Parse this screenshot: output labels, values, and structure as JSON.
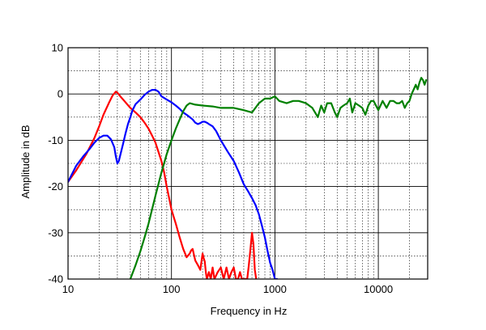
{
  "chart_data": {
    "type": "line",
    "title": "",
    "xlabel": "Frequency  in Hz",
    "ylabel": "Amplitude in dB",
    "xscale": "log",
    "xlim": [
      10,
      30000
    ],
    "ylim": [
      -40,
      10
    ],
    "xticks": [
      10,
      100,
      1000,
      10000
    ],
    "xtick_labels": [
      "10",
      "100",
      "1000",
      "10000"
    ],
    "yticks": [
      10,
      0,
      -10,
      -20,
      -30,
      -40
    ],
    "ytick_labels": [
      "10",
      "0",
      "-10",
      "-20",
      "-30",
      "-40"
    ],
    "grid": true,
    "legend": "none",
    "series": [
      {
        "color": "#ff0000",
        "x": [
          10,
          12,
          15,
          18,
          20,
          22,
          25,
          27,
          29,
          30,
          32,
          35,
          40,
          45,
          50,
          55,
          60,
          65,
          70,
          80,
          85,
          90,
          95,
          100,
          110,
          120,
          130,
          140,
          150,
          155,
          160,
          165,
          170,
          180,
          190,
          200,
          205,
          210,
          215,
          220,
          230,
          240,
          250,
          260,
          280,
          300,
          320,
          340,
          360,
          380,
          400,
          420,
          440,
          460,
          480,
          500,
          520,
          540,
          560,
          580,
          600,
          620,
          640,
          660
        ],
        "y": [
          -19,
          -16.5,
          -13,
          -9.5,
          -7,
          -4.5,
          -1.8,
          -0.3,
          0.5,
          0.3,
          -0.5,
          -1.5,
          -3,
          -4,
          -5,
          -6.2,
          -7.5,
          -9,
          -10.5,
          -14.5,
          -17,
          -20,
          -22.5,
          -25,
          -28,
          -31,
          -33.5,
          -35.3,
          -34.5,
          -33.8,
          -33.5,
          -34.8,
          -36,
          -37,
          -38,
          -34.5,
          -35.5,
          -36.2,
          -38.5,
          -40,
          -38.5,
          -40,
          -37.5,
          -40,
          -38.5,
          -37.5,
          -40,
          -37.5,
          -40,
          -38.5,
          -37.5,
          -40,
          -40,
          -38.5,
          -40,
          -40,
          -40,
          -40,
          -37,
          -33.5,
          -30,
          -32.5,
          -38,
          -40
        ]
      },
      {
        "color": "#0000ff",
        "x": [
          10,
          12,
          14,
          16,
          18,
          20,
          22,
          24,
          26,
          28,
          29,
          30,
          31,
          32,
          34,
          36,
          38,
          40,
          42,
          45,
          50,
          55,
          60,
          65,
          70,
          75,
          80,
          90,
          100,
          110,
          120,
          130,
          140,
          150,
          160,
          170,
          180,
          190,
          200,
          210,
          220,
          230,
          250,
          270,
          300,
          350,
          400,
          450,
          500,
          550,
          600,
          650,
          700,
          750,
          800,
          850,
          900,
          950,
          1000,
          1050
        ],
        "y": [
          -19,
          -15.5,
          -13.5,
          -12,
          -10.5,
          -9.5,
          -9,
          -9,
          -9.8,
          -11.5,
          -13.5,
          -15,
          -14.5,
          -13.2,
          -10.8,
          -8.5,
          -6.5,
          -5,
          -3.5,
          -2.2,
          -1.2,
          -0.2,
          0.5,
          0.9,
          0.9,
          0.5,
          -0.5,
          -1.2,
          -1.8,
          -2.5,
          -3.2,
          -4,
          -4.5,
          -5,
          -5.5,
          -6.2,
          -6.5,
          -6.3,
          -6,
          -6,
          -6.2,
          -6.5,
          -7,
          -8,
          -10,
          -12.5,
          -14.5,
          -17,
          -19.5,
          -21,
          -22.5,
          -24,
          -26,
          -28.5,
          -31,
          -34,
          -36.5,
          -38,
          -40,
          -40
        ]
      },
      {
        "color": "#008000",
        "x": [
          40,
          45,
          50,
          55,
          60,
          70,
          80,
          90,
          100,
          110,
          120,
          130,
          140,
          150,
          170,
          200,
          250,
          300,
          400,
          500,
          600,
          700,
          800,
          900,
          1000,
          1100,
          1300,
          1500,
          1700,
          2000,
          2300,
          2600,
          2800,
          3000,
          3200,
          3500,
          3800,
          4000,
          4300,
          4600,
          5000,
          5300,
          5600,
          6000,
          6500,
          7000,
          7500,
          8000,
          8500,
          9000,
          10000,
          11000,
          12000,
          13000,
          14000,
          15000,
          16000,
          17000,
          18000,
          19000,
          20000,
          21000,
          22000,
          23000,
          24000,
          25000,
          26000,
          27000,
          28000,
          29000
        ],
        "y": [
          -40,
          -37,
          -34,
          -31,
          -28,
          -22,
          -17,
          -13,
          -10,
          -7.5,
          -5.5,
          -3.7,
          -2.5,
          -2,
          -2.3,
          -2.5,
          -2.7,
          -3,
          -3,
          -3.5,
          -4,
          -2,
          -1,
          -1,
          -0.5,
          -1.5,
          -2,
          -1.5,
          -1.5,
          -2,
          -3,
          -5,
          -2.5,
          -4,
          -2,
          -2,
          -4,
          -5,
          -3,
          -2.5,
          -2,
          -1,
          -4,
          -2,
          -2.5,
          -3,
          -4.5,
          -2.5,
          -1.5,
          -1.5,
          -3.5,
          -1.5,
          -3,
          -1.5,
          -1.5,
          -2,
          -2,
          -1.5,
          -3,
          -2,
          -1.5,
          0,
          1,
          2,
          1,
          2.5,
          3.5,
          3,
          2,
          3
        ],
        "__cont": "below"
      }
    ]
  }
}
